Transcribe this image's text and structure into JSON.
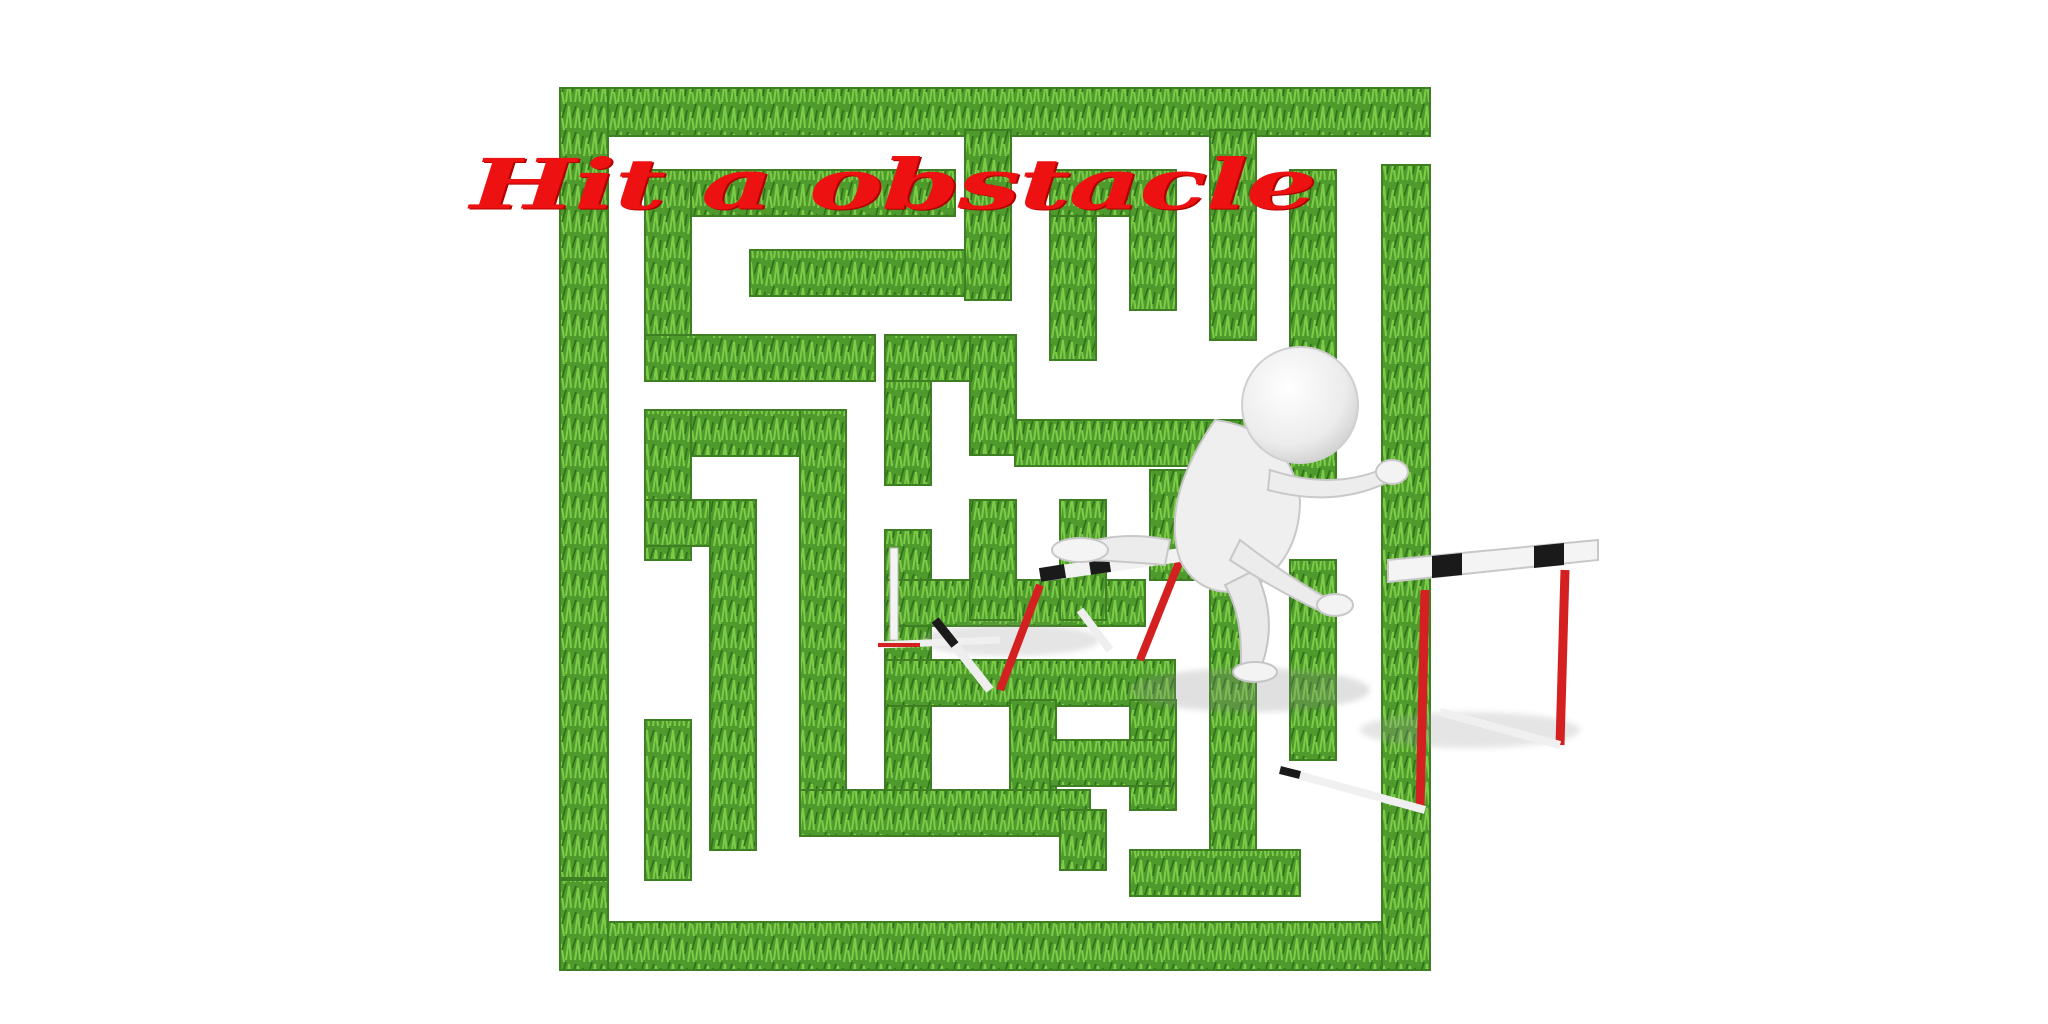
{
  "image": {
    "caption": "Hit a obstacle",
    "caption_color": "#ee1111",
    "hedge_color": "#4f9a2c",
    "hedge_dark": "#2f6e1a",
    "hedge_light": "#7ccc48",
    "path_color": "#ffffff",
    "figure_color": "#f2f2f2",
    "hurdle_bar_color": "#f0f0f0",
    "hurdle_stripe_color": "#1a1a1a",
    "hurdle_post_color": "#d42020"
  }
}
